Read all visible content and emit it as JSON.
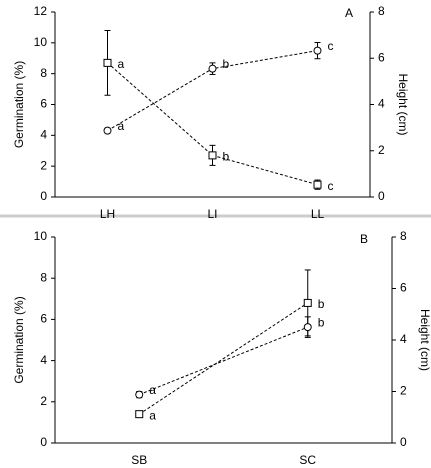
{
  "chart_data": [
    {
      "type": "line",
      "panel_label": "A",
      "y_label": "Germination (%)",
      "y2_label": "Height (cm)",
      "categories": [
        "LH",
        "LI",
        "LL"
      ],
      "ylim": [
        0,
        12
      ],
      "yticks": [
        0,
        2,
        4,
        6,
        8,
        10,
        12
      ],
      "y2lim": [
        0,
        8
      ],
      "y2ticks": [
        0,
        2,
        4,
        6,
        8
      ],
      "series": [
        {
          "marker": "square",
          "color": "#000000",
          "values": [
            8.7,
            2.7,
            0.8
          ],
          "errors": [
            2.1,
            0.65,
            0.3
          ],
          "point_labels": [
            "a",
            "b",
            "c"
          ]
        },
        {
          "marker": "circle",
          "color": "#000000",
          "axis": "y2",
          "values": [
            2.87,
            5.55,
            6.33
          ],
          "errors": [
            0.1,
            0.25,
            0.35
          ],
          "point_labels": [
            "a",
            "b",
            "c"
          ]
        }
      ]
    },
    {
      "type": "line",
      "panel_label": "B",
      "y_label": "Germination (%)",
      "y2_label": "Height (cm)",
      "categories": [
        "SB",
        "SC"
      ],
      "ylim": [
        0,
        10
      ],
      "yticks": [
        0,
        2,
        4,
        6,
        8,
        10
      ],
      "y2lim": [
        0,
        8
      ],
      "y2ticks": [
        0,
        2,
        4,
        6,
        8
      ],
      "series": [
        {
          "marker": "square",
          "color": "#000000",
          "values": [
            1.4,
            6.8
          ],
          "errors": [
            0.15,
            1.6
          ],
          "point_labels": [
            "a",
            "b"
          ]
        },
        {
          "marker": "circle",
          "color": "#000000",
          "axis": "y2",
          "values": [
            1.88,
            4.5
          ],
          "errors": [
            0.12,
            0.4
          ],
          "point_labels": [
            "a",
            "b"
          ]
        }
      ]
    }
  ]
}
